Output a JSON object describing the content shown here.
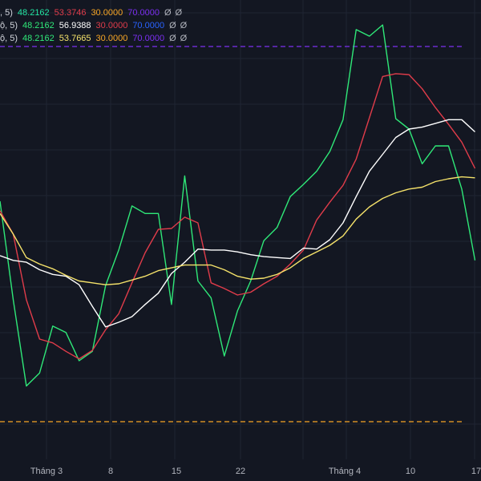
{
  "legend": [
    {
      "label": ", 5)",
      "values": [
        {
          "text": "48.2162",
          "color": "#23e6a3"
        },
        {
          "text": "53.3746",
          "color": "#e03c4a"
        },
        {
          "text": "30.0000",
          "color": "#f7a625"
        },
        {
          "text": "70.0000",
          "color": "#7b2ff0"
        }
      ],
      "icons": [
        "Ø",
        "Ø"
      ]
    },
    {
      "label": "ộ, 5)",
      "values": [
        {
          "text": "48.2162",
          "color": "#2fe878"
        },
        {
          "text": "56.9388",
          "color": "#ffffff"
        },
        {
          "text": "30.0000",
          "color": "#e03c4a"
        },
        {
          "text": "70.0000",
          "color": "#2962ff"
        }
      ],
      "icons": [
        "Ø",
        "Ø"
      ]
    },
    {
      "label": "ộ, 5)",
      "values": [
        {
          "text": "48.2162",
          "color": "#2fe878"
        },
        {
          "text": "53.7665",
          "color": "#f5e26a"
        },
        {
          "text": "30.0000",
          "color": "#f7a625"
        },
        {
          "text": "70.0000",
          "color": "#7b2ff0"
        }
      ],
      "icons": [
        "Ø",
        "Ø"
      ]
    }
  ],
  "chart_data": {
    "type": "line",
    "x_tick_labels": [
      "Tháng 3",
      "8",
      "15",
      "22",
      "Tháng 4",
      "10",
      "17"
    ],
    "ylim": [
      20,
      75
    ],
    "reference_lines": [
      {
        "value": 70,
        "color": "#7b2ff0",
        "style": "dashed"
      },
      {
        "value": 30,
        "color": "#f7a625",
        "style": "dashed"
      }
    ],
    "x_index_range": [
      0,
      30
    ],
    "series": [
      {
        "color": "#2fe878",
        "values": [
          53.5,
          43,
          33.8,
          35.2,
          40.2,
          39.5,
          36.5,
          37.5,
          44.5,
          48.3,
          53.0,
          52.2,
          52.2,
          42.5,
          56.2,
          45,
          43.2,
          37,
          41.8,
          45,
          49.3,
          50.7,
          54.0,
          55.3,
          56.7,
          58.8,
          62.2,
          71.8,
          71.1,
          72.3,
          62.3,
          61.2,
          57.5,
          59.4,
          59.4,
          54.8,
          47.2
        ]
      },
      {
        "color": "#e03c4a",
        "values": [
          52.5,
          50,
          43,
          38.8,
          38.4,
          37.5,
          36.7,
          37.6,
          39.8,
          41.5,
          44.8,
          48,
          50.5,
          50.6,
          51.8,
          51.2,
          44.8,
          44.2,
          43.5,
          43.8,
          44.7,
          45.5,
          46.8,
          48.3,
          51.5,
          53.4,
          55.2,
          58,
          62.4,
          66.8,
          67.1,
          67,
          65.5,
          63.5,
          61.7,
          59.8,
          57
        ]
      },
      {
        "color": "#ffffff",
        "values": [
          47.7,
          47.2,
          47,
          46.2,
          45.7,
          45.5,
          44.6,
          42.3,
          40.1,
          40.6,
          41.2,
          42.5,
          43.7,
          45.8,
          47,
          48.4,
          48.3,
          48.3,
          48.1,
          47.8,
          47.6,
          47.5,
          47.4,
          48.5,
          48.4,
          49.4,
          51.2,
          54,
          56.7,
          58.5,
          60.3,
          61.2,
          61.4,
          61.8,
          62.2,
          62.2,
          60.9
        ]
      },
      {
        "color": "#f5e26a",
        "values": [
          52.2,
          50,
          47.5,
          46.8,
          46.3,
          45.6,
          45,
          44.8,
          44.6,
          44.7,
          45.1,
          45.5,
          46.1,
          46.4,
          46.7,
          46.7,
          46.7,
          46.2,
          45.5,
          45.2,
          45.3,
          45.7,
          46.4,
          47.4,
          48.1,
          48.8,
          49.8,
          51.6,
          52.9,
          53.8,
          54.4,
          54.8,
          55.0,
          55.6,
          55.9,
          56.1,
          56.0
        ]
      }
    ]
  }
}
